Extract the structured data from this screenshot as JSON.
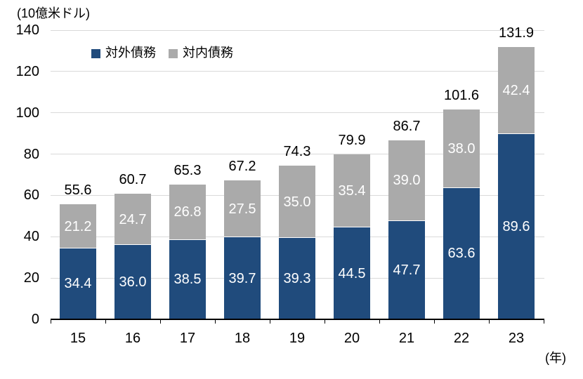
{
  "chart_data": {
    "type": "bar",
    "stacked": true,
    "title": "",
    "unit_label": "(10億米ドル)",
    "x_unit_label": "(年)",
    "categories": [
      "15",
      "16",
      "17",
      "18",
      "19",
      "20",
      "21",
      "22",
      "23"
    ],
    "series": [
      {
        "name": "対外債務",
        "key": "external-debt",
        "color": "#204b7c",
        "values": [
          34.4,
          36.0,
          38.5,
          39.7,
          39.3,
          44.5,
          47.7,
          63.6,
          89.6
        ]
      },
      {
        "name": "対内債務",
        "key": "domestic-debt",
        "color": "#aaaaaa",
        "values": [
          21.2,
          24.7,
          26.8,
          27.5,
          35.0,
          35.4,
          39.0,
          38.0,
          42.4
        ]
      }
    ],
    "totals": [
      55.6,
      60.7,
      65.3,
      67.2,
      74.3,
      79.9,
      86.7,
      101.6,
      131.9
    ],
    "ylim": [
      0,
      140
    ],
    "y_tick_step": 20,
    "y_ticks": [
      0,
      20,
      40,
      60,
      80,
      100,
      120,
      140
    ],
    "grid": true,
    "legend_position": "top",
    "colors": {
      "grid": "#d9d9d9",
      "axis": "#000000",
      "segment_label": "#ffffff",
      "total_label": "#000000"
    }
  }
}
